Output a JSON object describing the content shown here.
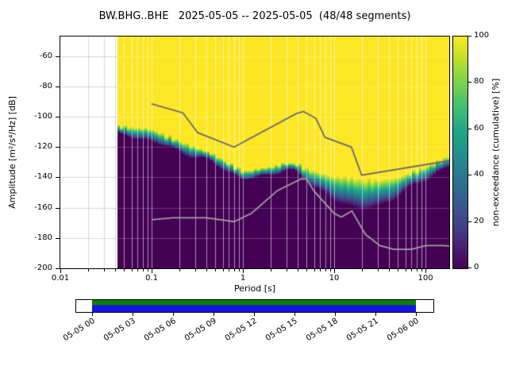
{
  "chart_data": {
    "type": "heatmap",
    "title": "BW.BHG..BHE   2025-05-05 -- 2025-05-05  (48/48 segments)",
    "xlabel": "Period [s]",
    "ylabel": "Amplitude [m²/s⁴/Hz] [dB]",
    "x_scale": "log",
    "xlim": [
      0.01,
      182
    ],
    "ylim": [
      -200,
      -47
    ],
    "x_tick_values": [
      0.01,
      0.1,
      1,
      10,
      100
    ],
    "x_tick_labels": [
      "0.01",
      "0.1",
      "1",
      "10",
      "100"
    ],
    "y_tick_values": [
      -60,
      -80,
      -100,
      -120,
      -140,
      -160,
      -180,
      -200
    ],
    "data_period_start": 0.043,
    "distribution": {
      "periods": [
        0.043,
        0.1,
        0.2,
        0.5,
        1,
        2,
        3,
        4,
        5,
        7,
        10,
        15,
        20,
        30,
        50,
        100,
        182
      ],
      "db_top": [
        -106,
        -108,
        -116,
        -125,
        -136,
        -133,
        -130.5,
        -131,
        -134,
        -137,
        -139,
        -140,
        -141,
        -142,
        -140,
        -133,
        -126
      ],
      "db_bottom": [
        -112,
        -116,
        -123,
        -131,
        -142,
        -138,
        -136,
        -137,
        -142,
        -149,
        -155,
        -159,
        -161,
        -160,
        -152,
        -141,
        -133
      ]
    },
    "noise_models": {
      "high": {
        "periods": [
          0.1,
          0.22,
          0.32,
          0.8,
          3.8,
          4.6,
          6.3,
          7.9,
          15.4,
          20,
          182
        ],
        "db": [
          -91.5,
          -97.4,
          -110.5,
          -120,
          -98,
          -96.5,
          -101,
          -113.5,
          -120,
          -138.5,
          -129
        ]
      },
      "low": {
        "periods": [
          0.1,
          0.17,
          0.4,
          0.8,
          1.24,
          2.4,
          4.3,
          5,
          6,
          10,
          12,
          15.6,
          21.9,
          31.6,
          45,
          70,
          101,
          154,
          182
        ],
        "db": [
          -168,
          -166.7,
          -166.7,
          -169.2,
          -163.7,
          -148.6,
          -141.1,
          -141.1,
          -149,
          -163.8,
          -166.2,
          -162.1,
          -177.5,
          -185,
          -187.5,
          -187.5,
          -185,
          -185,
          -185.3
        ]
      }
    },
    "noise_model_colors": {
      "high": "#6b6b6b",
      "low": "#a0a0a0"
    },
    "colorbar": {
      "label": "non-exceedance (cumulative) [%]",
      "ticks": [
        0,
        20,
        40,
        60,
        80,
        100
      ],
      "range": [
        0,
        100
      ]
    },
    "colormap": {
      "name": "viridis",
      "stops": [
        "#440154",
        "#482475",
        "#414487",
        "#355f8d",
        "#2a788e",
        "#21918c",
        "#22a884",
        "#44bf70",
        "#7ad151",
        "#bddf26",
        "#fde725"
      ]
    },
    "grid": true
  },
  "timeline": {
    "tick_labels": [
      "05-05 00",
      "05-05 03",
      "05-05 06",
      "05-05 09",
      "05-05 12",
      "05-05 15",
      "05-05 18",
      "05-05 21",
      "05-06 00"
    ],
    "coverage": {
      "start_frac": 0.044,
      "end_frac": 0.951
    },
    "colors": {
      "top": "#0a7d0a",
      "bottom": "#1414e6"
    }
  }
}
